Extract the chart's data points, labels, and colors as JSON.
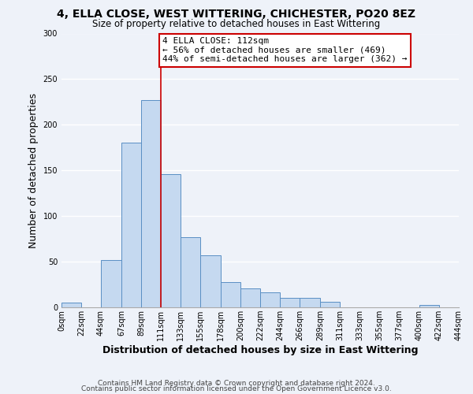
{
  "title": "4, ELLA CLOSE, WEST WITTERING, CHICHESTER, PO20 8EZ",
  "subtitle": "Size of property relative to detached houses in East Wittering",
  "xlabel": "Distribution of detached houses by size in East Wittering",
  "ylabel": "Number of detached properties",
  "bin_edges": [
    0,
    22,
    44,
    67,
    89,
    111,
    133,
    155,
    178,
    200,
    222,
    244,
    266,
    289,
    311,
    333,
    355,
    377,
    400,
    422,
    444
  ],
  "bin_labels": [
    "0sqm",
    "22sqm",
    "44sqm",
    "67sqm",
    "89sqm",
    "111sqm",
    "133sqm",
    "155sqm",
    "178sqm",
    "200sqm",
    "222sqm",
    "244sqm",
    "266sqm",
    "289sqm",
    "311sqm",
    "333sqm",
    "355sqm",
    "377sqm",
    "400sqm",
    "422sqm",
    "444sqm"
  ],
  "bar_heights": [
    5,
    0,
    52,
    180,
    227,
    146,
    77,
    57,
    28,
    21,
    16,
    10,
    10,
    6,
    0,
    0,
    0,
    0,
    3,
    0
  ],
  "bar_color": "#c5d9f0",
  "bar_edge_color": "#5a8fc4",
  "property_line_x": 111,
  "property_line_color": "#cc0000",
  "annotation_line1": "4 ELLA CLOSE: 112sqm",
  "annotation_line2": "← 56% of detached houses are smaller (469)",
  "annotation_line3": "44% of semi-detached houses are larger (362) →",
  "annotation_box_color": "#ffffff",
  "annotation_box_edge_color": "#cc0000",
  "ylim": [
    0,
    300
  ],
  "yticks": [
    0,
    50,
    100,
    150,
    200,
    250,
    300
  ],
  "footer_line1": "Contains HM Land Registry data © Crown copyright and database right 2024.",
  "footer_line2": "Contains public sector information licensed under the Open Government Licence v3.0.",
  "background_color": "#eef2f9",
  "grid_color": "#ffffff",
  "title_fontsize": 10,
  "subtitle_fontsize": 8.5,
  "axis_label_fontsize": 9,
  "tick_fontsize": 7,
  "annotation_fontsize": 8,
  "footer_fontsize": 6.5
}
